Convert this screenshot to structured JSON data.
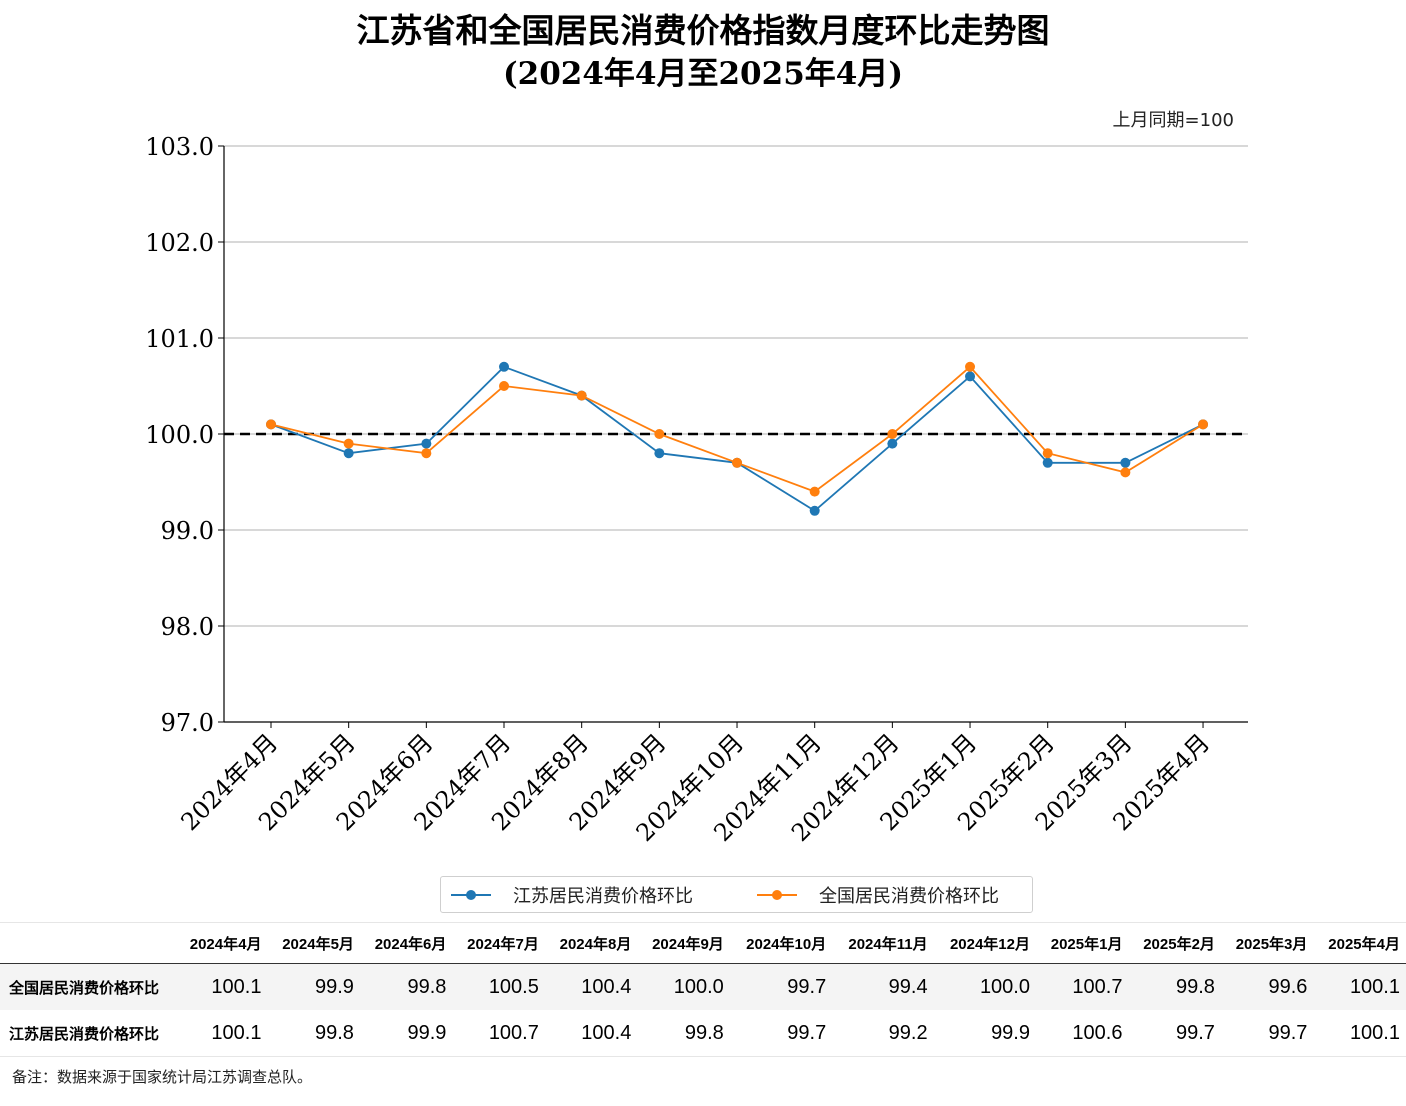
{
  "title_line1": "江苏省和全国居民消费价格指数月度环比走势图",
  "title_line2": "(2024年4月至2025年4月)",
  "unit_note": "上月同期=100",
  "colors": {
    "jiangsu": "#1f77b4",
    "national": "#ff7f0e",
    "baseline": "#000000",
    "grid": "#b0b0b0"
  },
  "chart_data": {
    "type": "line",
    "categories": [
      "2024年4月",
      "2024年5月",
      "2024年6月",
      "2024年7月",
      "2024年8月",
      "2024年9月",
      "2024年10月",
      "2024年11月",
      "2024年12月",
      "2025年1月",
      "2025年2月",
      "2025年3月",
      "2025年4月"
    ],
    "series": [
      {
        "name": "江苏居民消费价格环比",
        "values": [
          100.1,
          99.8,
          99.9,
          100.7,
          100.4,
          99.8,
          99.7,
          99.2,
          99.9,
          100.6,
          99.7,
          99.7,
          100.1
        ]
      },
      {
        "name": "全国居民消费价格环比",
        "values": [
          100.1,
          99.9,
          99.8,
          100.5,
          100.4,
          100.0,
          99.7,
          99.4,
          100.0,
          100.7,
          99.8,
          99.6,
          100.1
        ]
      }
    ],
    "ylim": [
      97.0,
      103.0
    ],
    "yticks": [
      "97.0",
      "98.0",
      "99.0",
      "100.0",
      "101.0",
      "102.0",
      "103.0"
    ],
    "baseline": 100.0,
    "grid": "horizontal",
    "legend_position": "bottom"
  },
  "table": {
    "headers": [
      "2024年4月",
      "2024年5月",
      "2024年6月",
      "2024年7月",
      "2024年8月",
      "2024年9月",
      "2024年10月",
      "2024年11月",
      "2024年12月",
      "2025年1月",
      "2025年2月",
      "2025年3月",
      "2025年4月"
    ],
    "rows": [
      {
        "label": "全国居民消费价格环比",
        "values": [
          "100.1",
          "99.9",
          "99.8",
          "100.5",
          "100.4",
          "100.0",
          "99.7",
          "99.4",
          "100.0",
          "100.7",
          "99.8",
          "99.6",
          "100.1"
        ]
      },
      {
        "label": "江苏居民消费价格环比",
        "values": [
          "100.1",
          "99.8",
          "99.9",
          "100.7",
          "100.4",
          "99.8",
          "99.7",
          "99.2",
          "99.9",
          "100.6",
          "99.7",
          "99.7",
          "100.1"
        ]
      }
    ]
  },
  "note": "备注：数据来源于国家统计局江苏调查总队。"
}
